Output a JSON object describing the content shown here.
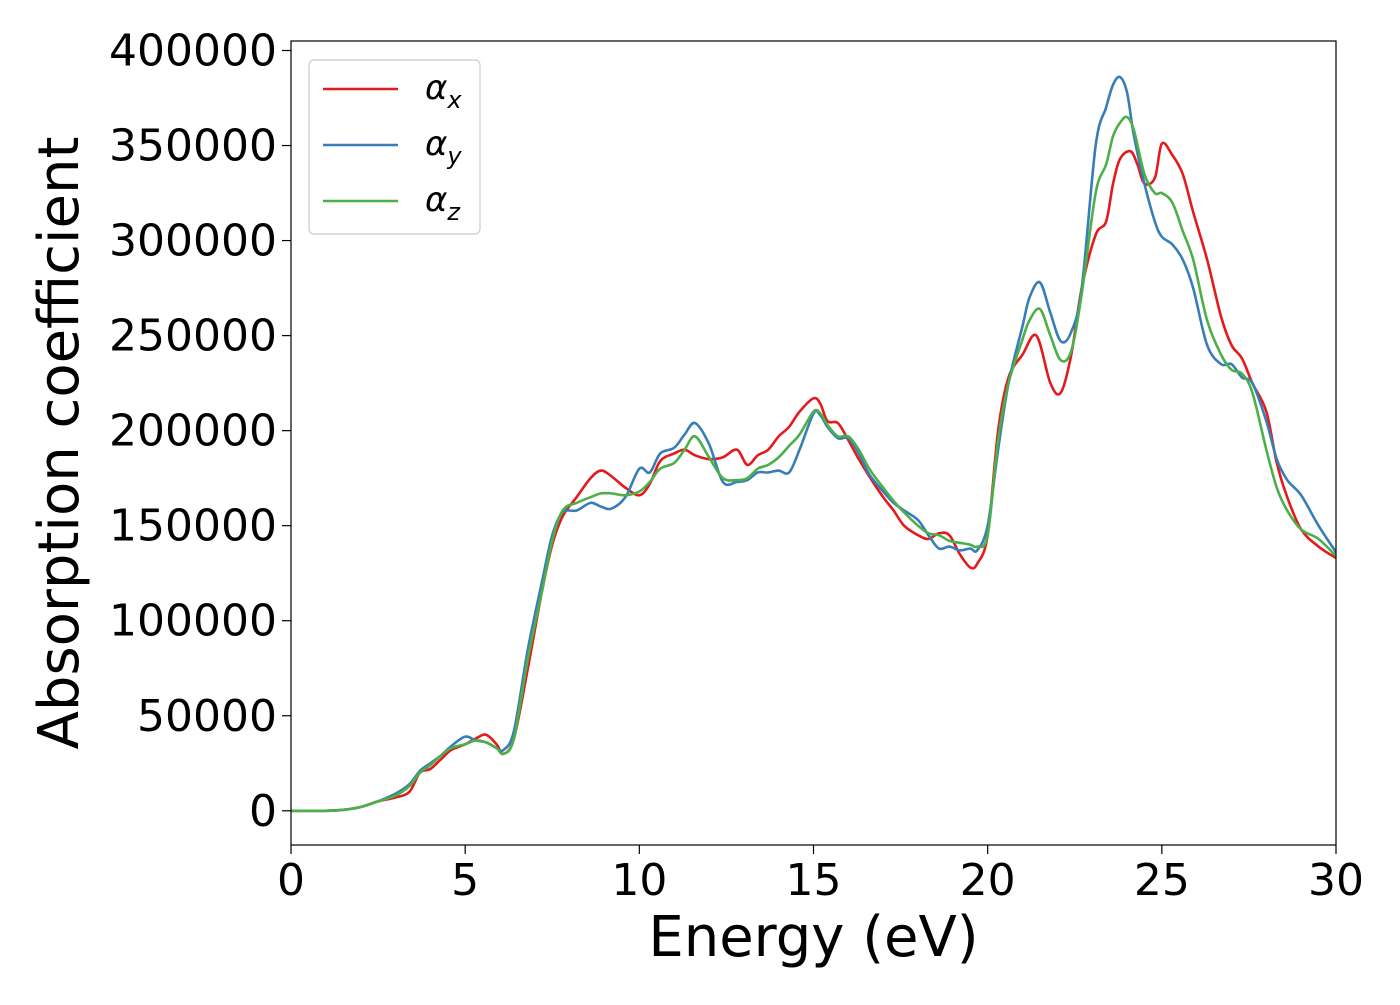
{
  "chart_data": {
    "type": "line",
    "xlabel": "Energy (eV)",
    "ylabel": "Absorption coefficient",
    "xlim": [
      0,
      30
    ],
    "ylim": [
      -18000,
      405000
    ],
    "xticks": [
      0,
      5,
      10,
      15,
      20,
      25,
      30
    ],
    "xtick_labels": [
      "0",
      "5",
      "10",
      "15",
      "20",
      "25",
      "30"
    ],
    "yticks": [
      0,
      50000,
      100000,
      150000,
      200000,
      250000,
      300000,
      350000,
      400000
    ],
    "ytick_labels": [
      "0",
      "50000",
      "100000",
      "150000",
      "200000",
      "250000",
      "300000",
      "350000",
      "400000"
    ],
    "grid": false,
    "legend_position": "top-left",
    "series": [
      {
        "name": "α_x",
        "label_base": "α",
        "label_sub": "x",
        "color": "#e41a1c",
        "x": [
          0,
          1,
          1.5,
          2,
          2.5,
          3,
          3.4,
          3.7,
          4,
          4.3,
          4.6,
          5,
          5.3,
          5.6,
          5.9,
          6.1,
          6.4,
          6.8,
          7.2,
          7.5,
          7.8,
          8.2,
          8.6,
          8.9,
          9.2,
          9.6,
          10,
          10.3,
          10.6,
          11,
          11.3,
          11.6,
          12,
          12.4,
          12.8,
          13.1,
          13.4,
          13.7,
          14,
          14.3,
          14.6,
          15,
          15.2,
          15.4,
          15.7,
          16,
          16.3,
          16.6,
          17,
          17.3,
          17.6,
          18,
          18.3,
          18.6,
          18.9,
          19.2,
          19.5,
          19.7,
          20,
          20.3,
          20.6,
          21,
          21.4,
          21.8,
          22.1,
          22.4,
          22.7,
          23.1,
          23.4,
          23.6,
          23.8,
          24.1,
          24.3,
          24.5,
          24.8,
          25,
          25.3,
          25.6,
          25.9,
          26.3,
          26.7,
          27,
          27.3,
          27.6,
          28,
          28.3,
          28.6,
          29,
          29.5,
          30
        ],
        "y": [
          0,
          0,
          500,
          2000,
          5000,
          7000,
          10000,
          20000,
          22000,
          27000,
          32000,
          35000,
          38000,
          40000,
          35000,
          30000,
          38000,
          75000,
          115000,
          140000,
          155000,
          165000,
          175000,
          179000,
          176000,
          170000,
          166000,
          172000,
          184000,
          188000,
          190000,
          187000,
          185000,
          186000,
          190000,
          182000,
          187000,
          190000,
          197000,
          202000,
          210000,
          217000,
          214000,
          205000,
          204000,
          195000,
          185000,
          176000,
          165000,
          158000,
          150000,
          145000,
          143000,
          146000,
          145000,
          135000,
          128000,
          130000,
          145000,
          200000,
          228000,
          240000,
          250000,
          225000,
          220000,
          240000,
          275000,
          303000,
          310000,
          330000,
          343000,
          347000,
          340000,
          330000,
          333000,
          351000,
          345000,
          335000,
          315000,
          290000,
          260000,
          245000,
          238000,
          225000,
          210000,
          183000,
          165000,
          148000,
          139000,
          133000
        ]
      },
      {
        "name": "α_y",
        "label_base": "α",
        "label_sub": "y",
        "color": "#377eb8",
        "x": [
          0,
          1,
          1.5,
          2,
          2.5,
          3,
          3.4,
          3.7,
          4,
          4.3,
          4.6,
          5,
          5.3,
          5.6,
          5.9,
          6.1,
          6.4,
          6.8,
          7.2,
          7.5,
          7.8,
          8.2,
          8.6,
          8.9,
          9.2,
          9.6,
          10,
          10.3,
          10.6,
          11,
          11.3,
          11.6,
          12,
          12.4,
          12.8,
          13.1,
          13.4,
          13.7,
          14,
          14.3,
          14.6,
          15,
          15.2,
          15.4,
          15.7,
          16,
          16.3,
          16.6,
          17,
          17.3,
          17.6,
          18,
          18.3,
          18.6,
          18.9,
          19.2,
          19.5,
          19.7,
          20,
          20.3,
          20.6,
          21,
          21.2,
          21.5,
          21.8,
          22.1,
          22.4,
          22.7,
          23.1,
          23.4,
          23.6,
          23.8,
          24,
          24.2,
          24.5,
          24.8,
          25,
          25.3,
          25.6,
          25.9,
          26.3,
          26.7,
          27,
          27.3,
          27.6,
          28,
          28.3,
          28.6,
          29,
          29.5,
          30
        ],
        "y": [
          0,
          0,
          500,
          2000,
          5000,
          9000,
          14000,
          21000,
          25000,
          29000,
          34000,
          39000,
          37000,
          36000,
          33000,
          32000,
          42000,
          85000,
          120000,
          145000,
          157000,
          158000,
          162000,
          160000,
          159000,
          165000,
          180000,
          178000,
          188000,
          191000,
          198000,
          204000,
          193000,
          173000,
          173000,
          174000,
          178000,
          178000,
          179000,
          178000,
          190000,
          209000,
          208000,
          202000,
          196000,
          196000,
          188000,
          177000,
          168000,
          162000,
          158000,
          153000,
          145000,
          138000,
          139000,
          137000,
          138000,
          137000,
          150000,
          190000,
          225000,
          255000,
          270000,
          278000,
          262000,
          247000,
          252000,
          275000,
          350000,
          370000,
          382000,
          386000,
          378000,
          355000,
          330000,
          310000,
          302000,
          298000,
          290000,
          275000,
          245000,
          235000,
          235000,
          228000,
          225000,
          205000,
          185000,
          174000,
          166000,
          150000,
          136000
        ]
      },
      {
        "name": "α_z",
        "label_base": "α",
        "label_sub": "z",
        "color": "#4daf4a",
        "x": [
          0,
          1,
          1.5,
          2,
          2.5,
          3,
          3.4,
          3.7,
          4,
          4.3,
          4.6,
          5,
          5.3,
          5.6,
          5.9,
          6.1,
          6.4,
          6.8,
          7.2,
          7.5,
          7.8,
          8.2,
          8.6,
          8.9,
          9.2,
          9.6,
          10,
          10.3,
          10.6,
          11,
          11.3,
          11.6,
          12,
          12.4,
          12.8,
          13.1,
          13.4,
          13.7,
          14,
          14.3,
          14.6,
          15,
          15.2,
          15.4,
          15.7,
          16,
          16.3,
          16.6,
          17,
          17.3,
          17.6,
          18,
          18.3,
          18.6,
          18.9,
          19.2,
          19.5,
          19.7,
          20,
          20.3,
          20.6,
          21,
          21.2,
          21.5,
          21.8,
          22.1,
          22.4,
          22.7,
          23.1,
          23.4,
          23.6,
          23.8,
          24,
          24.2,
          24.5,
          24.8,
          25,
          25.3,
          25.6,
          25.9,
          26.3,
          26.7,
          27,
          27.3,
          27.6,
          28,
          28.3,
          28.6,
          29,
          29.5,
          30
        ],
        "y": [
          0,
          0,
          500,
          2000,
          5000,
          8000,
          13000,
          20000,
          24000,
          29000,
          33000,
          35000,
          37000,
          36000,
          33000,
          30000,
          38000,
          80000,
          115000,
          142000,
          158000,
          162000,
          165000,
          167000,
          167000,
          166000,
          168000,
          173000,
          180000,
          183000,
          190000,
          197000,
          186000,
          175000,
          174000,
          175000,
          180000,
          182000,
          186000,
          192000,
          198000,
          210000,
          209000,
          203000,
          197000,
          197000,
          190000,
          180000,
          170000,
          163000,
          157000,
          150000,
          146000,
          145000,
          142000,
          141000,
          140000,
          139000,
          145000,
          195000,
          225000,
          248000,
          258000,
          264000,
          250000,
          237000,
          242000,
          272000,
          325000,
          340000,
          355000,
          362000,
          365000,
          358000,
          335000,
          325000,
          325000,
          320000,
          305000,
          290000,
          258000,
          240000,
          232000,
          230000,
          220000,
          190000,
          170000,
          158000,
          148000,
          143000,
          134000
        ]
      }
    ]
  }
}
